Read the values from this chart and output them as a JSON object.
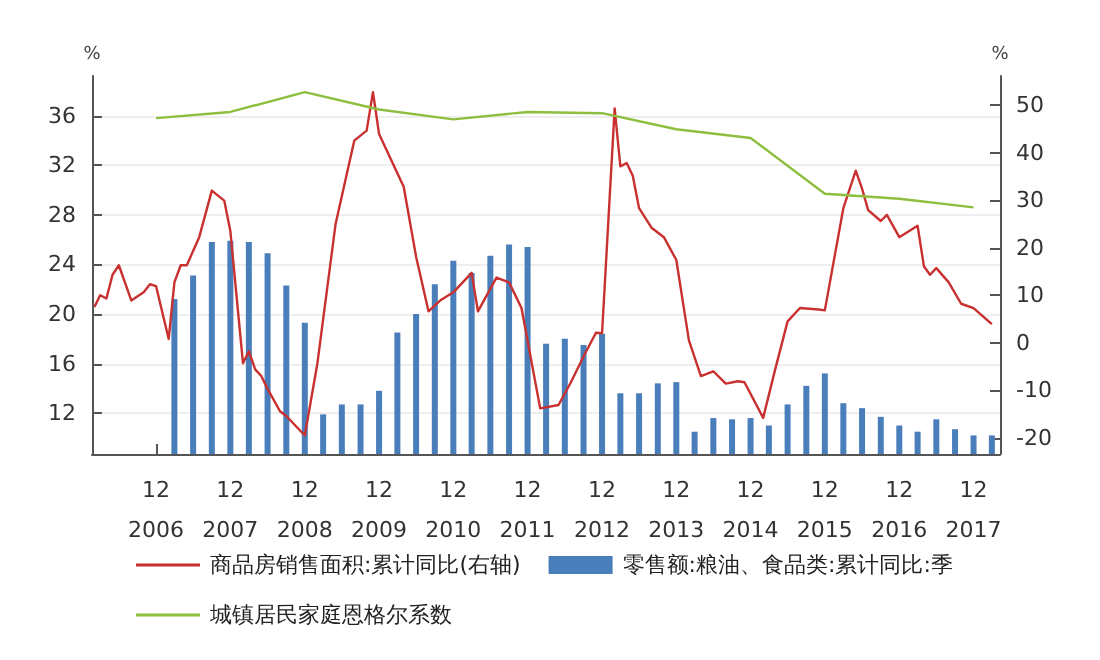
{
  "chart_data": {
    "type": "bar",
    "ylabel": "%",
    "y2label": "%",
    "xlim": [
      "2006-01-20",
      "2018-04-10"
    ],
    "xticks": [
      {
        "value": "2006-12",
        "label": "12\n2006"
      },
      {
        "value": "2007-12",
        "label": "12\n2007"
      },
      {
        "value": "2008-12",
        "label": "12\n2008"
      },
      {
        "value": "2009-12",
        "label": "12\n2009"
      },
      {
        "value": "2010-12",
        "label": "12\n2010"
      },
      {
        "value": "2011-12",
        "label": "12\n2011"
      },
      {
        "value": "2012-12",
        "label": "12\n2012"
      },
      {
        "value": "2013-12",
        "label": "12\n2013"
      },
      {
        "value": "2014-12",
        "label": "12\n2014"
      },
      {
        "value": "2015-12",
        "label": "12\n2015"
      },
      {
        "value": "2016-12",
        "label": "12\n2016"
      },
      {
        "value": "2017-12",
        "label": "12\n2017"
      }
    ],
    "ylim": [
      8.7,
      39.2
    ],
    "yticks": [
      12,
      16,
      20,
      24,
      28,
      32,
      36
    ],
    "y2lim": [
      -23.4,
      56.1
    ],
    "y2ticks": [
      -20,
      -10,
      0,
      10,
      20,
      30,
      40,
      50
    ],
    "grid": "y",
    "legend": "bottom",
    "marker": "none",
    "line_style": "solid",
    "series": [
      {
        "name": "商品房销售面积:累计同比(右轴)",
        "type": "line",
        "axis": "y2",
        "color": "#c8312f",
        "x": [
          "2006-02",
          "2006-03",
          "2006-04",
          "2006-05",
          "2006-06",
          "2006-08",
          "2006-10",
          "2006-11",
          "2006-12",
          "2007-02",
          "2007-03",
          "2007-04",
          "2007-05",
          "2007-07",
          "2007-09",
          "2007-11",
          "2007-12",
          "2008-02",
          "2008-03",
          "2008-04",
          "2008-05",
          "2008-06",
          "2008-08",
          "2008-09",
          "2008-12",
          "2009-02",
          "2009-05",
          "2009-08",
          "2009-10",
          "2009-11",
          "2009-12",
          "2010-04",
          "2010-06",
          "2010-08",
          "2010-10",
          "2010-12",
          "2011-03",
          "2011-04",
          "2011-07",
          "2011-09",
          "2011-11",
          "2012-02",
          "2012-05",
          "2012-07",
          "2012-09",
          "2012-11",
          "2012-12",
          "2013-02",
          "2013-03",
          "2013-04",
          "2013-05",
          "2013-06",
          "2013-08",
          "2013-10",
          "2013-12",
          "2014-02",
          "2014-04",
          "2014-06",
          "2014-08",
          "2014-10",
          "2014-11",
          "2015-02",
          "2015-04",
          "2015-06",
          "2015-08",
          "2015-11",
          "2015-12",
          "2016-03",
          "2016-05",
          "2016-06",
          "2016-07",
          "2016-09",
          "2016-10",
          "2016-12",
          "2017-03",
          "2017-04",
          "2017-05",
          "2017-06",
          "2017-08",
          "2017-10",
          "2017-12",
          "2018-03"
        ],
        "values": [
          7.5,
          10.0,
          9.3,
          14.3,
          16.3,
          8.9,
          10.6,
          12.3,
          11.9,
          0.8,
          12.7,
          16.3,
          16.3,
          22.2,
          32.0,
          29.9,
          23.5,
          -4.3,
          -1.8,
          -5.6,
          -7.0,
          -9.7,
          -14.4,
          -15.4,
          -19.5,
          -4.3,
          24.9,
          42.5,
          44.6,
          52.7,
          43.9,
          32.8,
          18.1,
          6.6,
          9.0,
          10.6,
          14.7,
          6.6,
          13.7,
          12.7,
          7.3,
          -13.8,
          -13.1,
          -8.3,
          -2.9,
          2.1,
          2.0,
          49.3,
          37.1,
          37.8,
          35.1,
          28.3,
          24.2,
          22.2,
          17.4,
          0.5,
          -7.0,
          -6.0,
          -8.6,
          -8.1,
          -8.3,
          -15.8,
          -5.6,
          4.5,
          7.3,
          7.0,
          6.8,
          28.3,
          36.2,
          32.4,
          27.9,
          25.6,
          26.9,
          22.2,
          24.6,
          16.1,
          14.3,
          15.7,
          12.7,
          8.2,
          7.3,
          3.9
        ]
      },
      {
        "name": "零售额:粮油、食品类:累计同比:季",
        "color": "#4a7ebb",
        "x": [
          "2007-03",
          "2007-06",
          "2007-09",
          "2007-12",
          "2008-03",
          "2008-06",
          "2008-09",
          "2008-12",
          "2009-03",
          "2009-06",
          "2009-09",
          "2009-12",
          "2010-03",
          "2010-06",
          "2010-09",
          "2010-12",
          "2011-03",
          "2011-06",
          "2011-09",
          "2011-12",
          "2012-03",
          "2012-06",
          "2012-09",
          "2012-12",
          "2013-03",
          "2013-06",
          "2013-09",
          "2013-12",
          "2014-03",
          "2014-06",
          "2014-09",
          "2014-12",
          "2015-03",
          "2015-06",
          "2015-09",
          "2015-12",
          "2016-03",
          "2016-06",
          "2016-09",
          "2016-12",
          "2017-03",
          "2017-06",
          "2017-09",
          "2017-12",
          "2018-03"
        ],
        "values": [
          21.2,
          23.1,
          25.8,
          25.9,
          25.8,
          24.9,
          22.3,
          19.3,
          11.9,
          12.7,
          12.7,
          13.8,
          18.5,
          20.0,
          22.4,
          24.3,
          23.3,
          24.7,
          25.6,
          25.4,
          17.6,
          18.0,
          17.5,
          18.4,
          13.6,
          13.6,
          14.4,
          14.5,
          10.5,
          11.6,
          11.5,
          11.6,
          11.0,
          12.7,
          14.2,
          15.2,
          12.8,
          12.4,
          11.7,
          11.0,
          10.5,
          11.5,
          10.7,
          10.2,
          10.2
        ]
      },
      {
        "name": "城镇居民家庭恩格尔系数",
        "type": "line",
        "color": "#8dbf3f",
        "x": [
          "2006-12",
          "2007-12",
          "2008-12",
          "2009-12",
          "2010-12",
          "2011-12",
          "2012-12",
          "2013-12",
          "2014-12",
          "2015-12",
          "2016-12",
          "2017-12"
        ],
        "values": [
          35.8,
          36.3,
          37.9,
          36.5,
          35.7,
          36.3,
          36.2,
          34.9,
          34.2,
          29.7,
          29.3,
          28.6
        ]
      }
    ]
  }
}
